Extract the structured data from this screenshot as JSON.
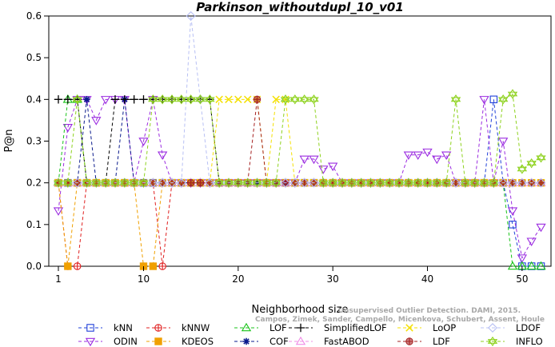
{
  "chart_data": {
    "type": "line",
    "title": "Parkinson_withoutdupl_10_v01",
    "xlabel": "Neighborhood size",
    "ylabel": "P@n",
    "xlim": [
      0,
      53
    ],
    "ylim": [
      0,
      0.6
    ],
    "x_ticks": [
      1,
      10,
      20,
      30,
      40,
      50
    ],
    "y_ticks": [
      0.0,
      0.1,
      0.2,
      0.3,
      0.4,
      0.5,
      0.6
    ],
    "grid": false,
    "legend_position": "bottom",
    "watermark": {
      "line1": "Unsupervised Outlier Detection. DAMI, 2015.",
      "line2": "Campos, Zimek, Sander, Campello, Micenkova, Schubert, Assent, Houle"
    },
    "series": [
      {
        "name": "kNN",
        "color": "#1e3fd9",
        "marker": "square",
        "values": [
          0.2,
          0.2,
          0.2,
          0.2,
          0.2,
          0.2,
          0.2,
          0.2,
          0.2,
          0.2,
          0.2,
          0.2,
          0.2,
          0.2,
          0.2,
          0.2,
          0.2,
          0.2,
          0.2,
          0.2,
          0.2,
          0.2,
          0.2,
          0.2,
          0.2,
          0.2,
          0.2,
          0.2,
          0.2,
          0.2,
          0.2,
          0.2,
          0.2,
          0.2,
          0.2,
          0.2,
          0.2,
          0.2,
          0.2,
          0.2,
          0.2,
          0.2,
          0.2,
          0.2,
          0.2,
          0.2,
          0.4,
          0.2,
          0.1,
          0.0,
          0.0,
          0.0
        ]
      },
      {
        "name": "ODIN",
        "color": "#9b2ce0",
        "marker": "triangle-down",
        "values": [
          0.133,
          0.333,
          0.4,
          0.4,
          0.35,
          0.4,
          0.4,
          0.4,
          0.2,
          0.3,
          0.4,
          0.267,
          0.2,
          0.2,
          0.2,
          0.2,
          0.2,
          0.2,
          0.2,
          0.2,
          0.2,
          0.2,
          0.2,
          0.2,
          0.2,
          0.2,
          0.257,
          0.257,
          0.233,
          0.24,
          0.2,
          0.2,
          0.2,
          0.2,
          0.2,
          0.2,
          0.2,
          0.267,
          0.267,
          0.274,
          0.257,
          0.267,
          0.2,
          0.2,
          0.2,
          0.4,
          0.2,
          0.3,
          0.133,
          0.02,
          0.06,
          0.094
        ]
      },
      {
        "name": "kNNW",
        "color": "#e02020",
        "marker": "circle-plus",
        "values": [
          0.2,
          0.0,
          0.0,
          0.2,
          0.2,
          0.2,
          0.2,
          0.2,
          0.2,
          0.2,
          0.2,
          0.0,
          0.2,
          0.2,
          0.2,
          0.2,
          0.2,
          0.2,
          0.2,
          0.2,
          0.2,
          0.2,
          0.2,
          0.2,
          0.2,
          0.2,
          0.2,
          0.2,
          0.2,
          0.2,
          0.2,
          0.2,
          0.2,
          0.2,
          0.2,
          0.2,
          0.2,
          0.2,
          0.2,
          0.2,
          0.2,
          0.2,
          0.2,
          0.2,
          0.2,
          0.2,
          0.2,
          0.2,
          0.2,
          0.2,
          0.2,
          0.2
        ]
      },
      {
        "name": "KDEOS",
        "color": "#f0a000",
        "marker": "square-filled",
        "values": [
          0.2,
          0.0,
          0.2,
          0.2,
          0.2,
          0.2,
          0.2,
          0.2,
          0.2,
          0.0,
          0.0,
          0.2,
          0.2,
          0.2,
          0.2,
          0.2,
          0.2,
          0.2,
          0.2,
          0.2,
          0.2,
          0.2,
          0.2,
          0.2,
          0.2,
          0.2,
          0.2,
          0.2,
          0.2,
          0.2,
          0.2,
          0.2,
          0.2,
          0.2,
          0.2,
          0.2,
          0.2,
          0.2,
          0.2,
          0.2,
          0.2,
          0.2,
          0.2,
          0.2,
          0.2,
          0.2,
          0.2,
          0.2,
          0.2,
          0.2,
          0.2,
          0.2
        ]
      },
      {
        "name": "LOF",
        "color": "#18c318",
        "marker": "triangle",
        "values": [
          0.2,
          0.4,
          0.4,
          0.2,
          0.2,
          0.2,
          0.2,
          0.2,
          0.2,
          0.2,
          0.2,
          0.2,
          0.2,
          0.2,
          0.2,
          0.2,
          0.2,
          0.2,
          0.2,
          0.2,
          0.2,
          0.2,
          0.2,
          0.2,
          0.2,
          0.2,
          0.2,
          0.2,
          0.2,
          0.2,
          0.2,
          0.2,
          0.2,
          0.2,
          0.2,
          0.2,
          0.2,
          0.2,
          0.2,
          0.2,
          0.2,
          0.2,
          0.2,
          0.2,
          0.2,
          0.2,
          0.2,
          0.2,
          0.0,
          0.0,
          0.0,
          0.0
        ]
      },
      {
        "name": "COF",
        "color": "#0a1a8c",
        "marker": "asterisk",
        "values": [
          0.2,
          0.2,
          0.2,
          0.4,
          0.2,
          0.2,
          0.2,
          0.4,
          0.2,
          0.2,
          0.2,
          0.2,
          0.2,
          0.2,
          0.2,
          0.2,
          0.2,
          0.2,
          0.2,
          0.2,
          0.2,
          0.2,
          0.2,
          0.2,
          0.2,
          0.2,
          0.2,
          0.2,
          0.2,
          0.2,
          0.2,
          0.2,
          0.2,
          0.2,
          0.2,
          0.2,
          0.2,
          0.2,
          0.2,
          0.2,
          0.2,
          0.2,
          0.2,
          0.2,
          0.2,
          0.2,
          0.2,
          0.2,
          0.2,
          0.2,
          0.2,
          0.2
        ]
      },
      {
        "name": "SimplifiedLOF",
        "color": "#000000",
        "marker": "plus",
        "values": [
          0.4,
          0.4,
          0.4,
          0.2,
          0.2,
          0.2,
          0.4,
          0.4,
          0.4,
          0.4,
          0.4,
          0.4,
          0.4,
          0.4,
          0.4,
          0.4,
          0.4,
          0.2,
          0.2,
          0.2,
          0.2,
          0.2,
          0.2,
          0.2,
          0.2,
          0.2,
          0.2,
          0.2,
          0.2,
          0.2,
          0.2,
          0.2,
          0.2,
          0.2,
          0.2,
          0.2,
          0.2,
          0.2,
          0.2,
          0.2,
          0.2,
          0.2,
          0.2,
          0.2,
          0.2,
          0.2,
          0.2,
          0.2,
          0.2,
          0.2,
          0.2,
          0.2
        ]
      },
      {
        "name": "FastABOD",
        "color": "#f08ce6",
        "marker": "triangle-light",
        "values": [
          0.2,
          0.2,
          0.2,
          0.2,
          0.2,
          0.2,
          0.2,
          0.2,
          0.2,
          0.2,
          0.2,
          0.2,
          0.2,
          0.2,
          0.2,
          0.2,
          0.2,
          0.2,
          0.2,
          0.2,
          0.2,
          0.2,
          0.2,
          0.2,
          0.2,
          0.2,
          0.2,
          0.2,
          0.2,
          0.2,
          0.2,
          0.2,
          0.2,
          0.2,
          0.2,
          0.2,
          0.2,
          0.2,
          0.2,
          0.2,
          0.2,
          0.2,
          0.2,
          0.2,
          0.2,
          0.2,
          0.2,
          0.2,
          0.2,
          0.2,
          0.2,
          0.2
        ]
      },
      {
        "name": "LoOP",
        "color": "#f4e000",
        "marker": "x",
        "values": [
          0.2,
          0.2,
          0.2,
          0.2,
          0.2,
          0.2,
          0.2,
          0.2,
          0.2,
          0.2,
          0.2,
          0.2,
          0.2,
          0.2,
          0.2,
          0.2,
          0.2,
          0.4,
          0.4,
          0.4,
          0.4,
          0.4,
          0.2,
          0.4,
          0.4,
          0.2,
          0.2,
          0.2,
          0.2,
          0.2,
          0.2,
          0.2,
          0.2,
          0.2,
          0.2,
          0.2,
          0.2,
          0.2,
          0.2,
          0.2,
          0.2,
          0.2,
          0.2,
          0.2,
          0.2,
          0.2,
          0.2,
          0.2,
          0.2,
          0.2,
          0.2,
          0.2
        ]
      },
      {
        "name": "LDF",
        "color": "#a52020",
        "marker": "circle-plus-filled",
        "values": [
          0.2,
          0.2,
          0.2,
          0.2,
          0.2,
          0.2,
          0.2,
          0.2,
          0.2,
          0.2,
          0.2,
          0.2,
          0.2,
          0.2,
          0.2,
          0.2,
          0.2,
          0.2,
          0.2,
          0.2,
          0.2,
          0.4,
          0.2,
          0.2,
          0.2,
          0.2,
          0.2,
          0.2,
          0.2,
          0.2,
          0.2,
          0.2,
          0.2,
          0.2,
          0.2,
          0.2,
          0.2,
          0.2,
          0.2,
          0.2,
          0.2,
          0.2,
          0.2,
          0.2,
          0.2,
          0.2,
          0.2,
          0.2,
          0.2,
          0.2,
          0.2,
          0.2
        ]
      },
      {
        "name": "LDOF",
        "color": "#b8c0f4",
        "marker": "diamond",
        "values": [
          0.2,
          0.2,
          0.2,
          0.2,
          0.2,
          0.2,
          0.2,
          0.2,
          0.2,
          0.2,
          0.2,
          0.2,
          0.2,
          0.2,
          0.6,
          0.4,
          0.2,
          0.2,
          0.2,
          0.2,
          0.2,
          0.2,
          0.2,
          0.2,
          0.2,
          0.2,
          0.2,
          0.2,
          0.2,
          0.2,
          0.2,
          0.2,
          0.2,
          0.2,
          0.2,
          0.2,
          0.2,
          0.2,
          0.2,
          0.2,
          0.2,
          0.2,
          0.2,
          0.2,
          0.2,
          0.2,
          0.2,
          0.2,
          0.2,
          0.2,
          0.2,
          0.2
        ]
      },
      {
        "name": "INFLO",
        "color": "#8ed21e",
        "marker": "star",
        "values": [
          0.2,
          0.2,
          0.4,
          0.2,
          0.2,
          0.2,
          0.2,
          0.2,
          0.2,
          0.2,
          0.4,
          0.4,
          0.4,
          0.4,
          0.4,
          0.4,
          0.4,
          0.2,
          0.2,
          0.2,
          0.2,
          0.2,
          0.2,
          0.2,
          0.4,
          0.4,
          0.4,
          0.4,
          0.2,
          0.2,
          0.2,
          0.2,
          0.2,
          0.2,
          0.2,
          0.2,
          0.2,
          0.2,
          0.2,
          0.2,
          0.2,
          0.2,
          0.4,
          0.2,
          0.2,
          0.2,
          0.2,
          0.4,
          0.413,
          0.233,
          0.247,
          0.26
        ]
      }
    ]
  }
}
